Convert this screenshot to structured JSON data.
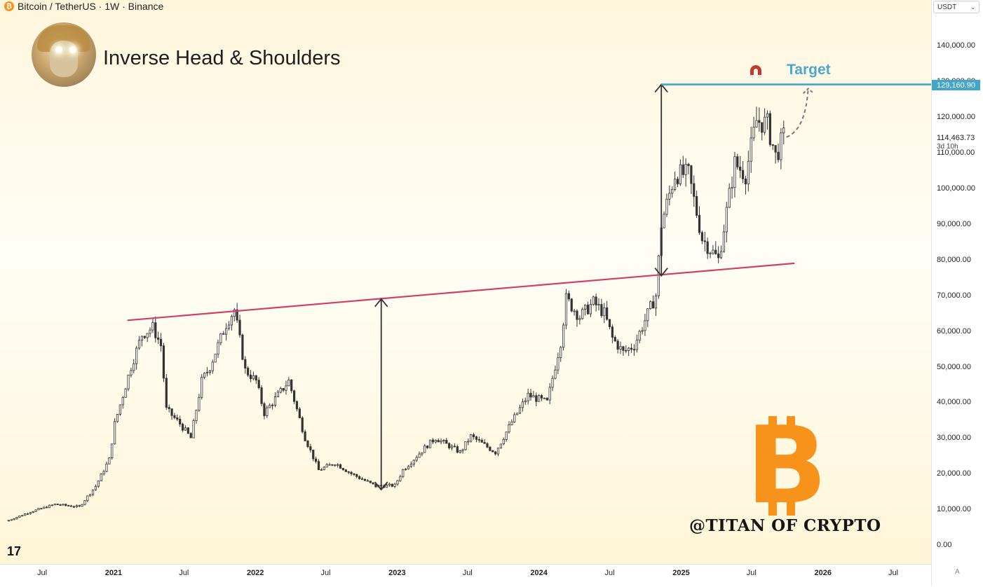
{
  "header": {
    "title": "Bitcoin / TetherUS · 1W · Binance",
    "symbol_icon": "bitcoin-icon"
  },
  "pattern_title": "Inverse Head & Shoulders",
  "currency_selector": "USDT",
  "target": {
    "label": "Target",
    "price_label": "129,160.90",
    "icon": "magnet-icon"
  },
  "current": {
    "price": "114,463.73",
    "countdown": "3d 10h"
  },
  "watermark": "@TITAN OF CRYPTO",
  "brand_glyph": "B",
  "tv_logo": "17",
  "corner_label": "A",
  "colors": {
    "neckline": "#cf3f6a",
    "target": "#42a6c8",
    "bitcoin": "#f7931a",
    "up": "#ffffff",
    "down": "#333333"
  },
  "chart_data": {
    "type": "candlestick",
    "title": "Inverse Head & Shoulders",
    "ylabel": "",
    "ylim": [
      -4000,
      152000
    ],
    "y_ticks": [
      "0.00",
      "10,000.00",
      "20,000.00",
      "30,000.00",
      "40,000.00",
      "50,000.00",
      "60,000.00",
      "70,000.00",
      "80,000.00",
      "90,000.00",
      "100,000.00",
      "110,000.00",
      "120,000.00",
      "130,000.00",
      "140,000.00"
    ],
    "y_tick_values": [
      0,
      10000,
      20000,
      30000,
      40000,
      50000,
      60000,
      70000,
      80000,
      90000,
      100000,
      110000,
      120000,
      130000,
      140000
    ],
    "x_ticks": [
      "Jul",
      "2021",
      "Jul",
      "2022",
      "Jul",
      "2023",
      "Jul",
      "2024",
      "Jul",
      "2025",
      "Jul",
      "2026",
      "Jul"
    ],
    "x_tick_dates": [
      "2020-07-01",
      "2021-01-01",
      "2021-07-01",
      "2022-01-01",
      "2022-07-01",
      "2023-01-01",
      "2023-07-01",
      "2024-01-01",
      "2024-07-01",
      "2025-01-01",
      "2025-07-01",
      "2026-01-01",
      "2026-07-01"
    ],
    "price_path": [
      [
        "2020-04-06",
        6900
      ],
      [
        "2020-06-01",
        9300
      ],
      [
        "2020-08-03",
        11400
      ],
      [
        "2020-10-05",
        10700
      ],
      [
        "2020-11-16",
        16500
      ],
      [
        "2020-12-21",
        24000
      ],
      [
        "2021-01-04",
        34000
      ],
      [
        "2021-02-15",
        50000
      ],
      [
        "2021-03-15",
        59000
      ],
      [
        "2021-04-12",
        61000
      ],
      [
        "2021-05-03",
        56000
      ],
      [
        "2021-05-17",
        38000
      ],
      [
        "2021-06-21",
        34000
      ],
      [
        "2021-07-19",
        30000
      ],
      [
        "2021-08-16",
        46000
      ],
      [
        "2021-09-06",
        50000
      ],
      [
        "2021-10-18",
        62000
      ],
      [
        "2021-11-08",
        66000
      ],
      [
        "2021-12-06",
        49000
      ],
      [
        "2022-01-03",
        46000
      ],
      [
        "2022-01-24",
        37000
      ],
      [
        "2022-03-28",
        46000
      ],
      [
        "2022-05-09",
        30000
      ],
      [
        "2022-06-13",
        21000
      ],
      [
        "2022-07-25",
        23000
      ],
      [
        "2022-09-05",
        20000
      ],
      [
        "2022-11-07",
        16500
      ],
      [
        "2022-12-26",
        16700
      ],
      [
        "2023-01-16",
        21000
      ],
      [
        "2023-03-20",
        28000
      ],
      [
        "2023-04-10",
        30000
      ],
      [
        "2023-06-12",
        26000
      ],
      [
        "2023-07-10",
        30500
      ],
      [
        "2023-09-11",
        26000
      ],
      [
        "2023-10-23",
        34500
      ],
      [
        "2023-12-04",
        42000
      ],
      [
        "2024-01-22",
        40000
      ],
      [
        "2024-02-26",
        57000
      ],
      [
        "2024-03-11",
        69000
      ],
      [
        "2024-04-15",
        64000
      ],
      [
        "2024-05-20",
        68000
      ],
      [
        "2024-06-17",
        65000
      ],
      [
        "2024-07-08",
        58000
      ],
      [
        "2024-08-05",
        54000
      ],
      [
        "2024-09-02",
        56000
      ],
      [
        "2024-09-30",
        63000
      ],
      [
        "2024-10-28",
        70000
      ],
      [
        "2024-11-11",
        90000
      ],
      [
        "2024-12-16",
        104000
      ],
      [
        "2025-01-20",
        104000
      ],
      [
        "2025-02-24",
        86000
      ],
      [
        "2025-04-07",
        80000
      ],
      [
        "2025-05-19",
        107000
      ],
      [
        "2025-06-16",
        104000
      ],
      [
        "2025-07-14",
        119000
      ],
      [
        "2025-08-11",
        118000
      ],
      [
        "2025-09-01",
        109000
      ],
      [
        "2025-09-22",
        114400
      ]
    ],
    "neckline": {
      "start": [
        "2021-01-04",
        63000
      ],
      "end": [
        "2025-10-20",
        79000
      ],
      "color": "#cf3f6a"
    },
    "head_measure": {
      "date": "2022-11-21",
      "low": 15500,
      "high": 69000
    },
    "breakout_measure": {
      "date": "2024-11-11",
      "low": 75500,
      "high": 129160.9
    },
    "target_line": {
      "value": 129160.9,
      "start": "2024-11-11",
      "label": "Target",
      "color": "#42a6c8"
    },
    "projection": {
      "start": [
        "2025-09-29",
        114400
      ],
      "end": [
        "2025-11-24",
        128000
      ],
      "style": "dashed"
    },
    "current_price": 114463.73,
    "grid": false,
    "legend": "none"
  }
}
